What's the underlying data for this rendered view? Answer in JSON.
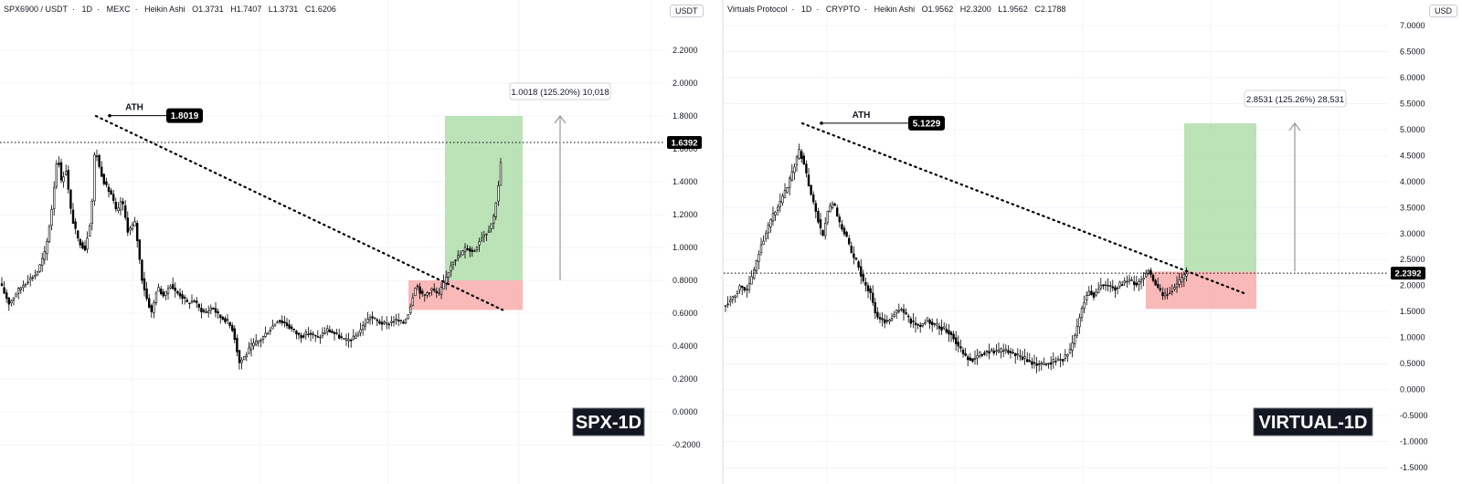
{
  "panels": [
    {
      "id": "spx",
      "header": {
        "symbol": "SPX6900 / USDT",
        "interval": "1D",
        "exchange": "MEXC",
        "style": "Heikin Ashi",
        "open": "O1.3731",
        "high": "H1.7407",
        "low": "L1.3731",
        "close": "C1.6206"
      },
      "currency": "USDT",
      "watermark": "SPX-1D",
      "ath_label": "ATH",
      "ath_value": "1.8019",
      "price_tag": "1.6392",
      "measure_label": "1.0018 (125.20%) 10,018"
    },
    {
      "id": "virtual",
      "header": {
        "symbol": "Virtuals Protocol",
        "interval": "1D",
        "exchange": "CRYPTO",
        "style": "Heikin Ashi",
        "open": "O1.9562",
        "high": "H2.3200",
        "low": "L1.9562",
        "close": "C2.1788"
      },
      "currency": "USD",
      "watermark": "VIRTUAL-1D",
      "ath_label": "ATH",
      "ath_value": "5.1229",
      "price_tag": "2.2392",
      "measure_label": "2.8531 (125.26%) 28,531"
    }
  ],
  "chart_data": [
    {
      "type": "candlestick",
      "title": "SPX6900 / USDT · 1D · MEXC · Heikin Ashi",
      "ylim": [
        -0.2,
        2.2
      ],
      "yticks": [
        "2.2000",
        "2.0000",
        "1.8000",
        "1.6000",
        "1.4000",
        "1.2000",
        "1.0000",
        "0.8000",
        "0.6000",
        "0.4000",
        "0.2000",
        "0.0000",
        "-0.2000"
      ],
      "price_path": [
        [
          0,
          0.78
        ],
        [
          10,
          0.66
        ],
        [
          20,
          0.74
        ],
        [
          30,
          0.8
        ],
        [
          40,
          0.84
        ],
        [
          50,
          0.98
        ],
        [
          57,
          1.25
        ],
        [
          63,
          1.58
        ],
        [
          67,
          1.4
        ],
        [
          72,
          1.48
        ],
        [
          78,
          1.2
        ],
        [
          85,
          1.05
        ],
        [
          93,
          0.99
        ],
        [
          100,
          1.2
        ],
        [
          104,
          1.62
        ],
        [
          108,
          1.5
        ],
        [
          115,
          1.38
        ],
        [
          122,
          1.32
        ],
        [
          128,
          1.2
        ],
        [
          133,
          1.3
        ],
        [
          140,
          1.1
        ],
        [
          148,
          1.15
        ],
        [
          155,
          0.82
        ],
        [
          160,
          0.7
        ],
        [
          166,
          0.6
        ],
        [
          172,
          0.76
        ],
        [
          180,
          0.7
        ],
        [
          186,
          0.78
        ],
        [
          192,
          0.73
        ],
        [
          198,
          0.71
        ],
        [
          205,
          0.66
        ],
        [
          212,
          0.68
        ],
        [
          218,
          0.63
        ],
        [
          225,
          0.6
        ],
        [
          232,
          0.64
        ],
        [
          240,
          0.58
        ],
        [
          247,
          0.56
        ],
        [
          255,
          0.5
        ],
        [
          262,
          0.3
        ],
        [
          268,
          0.34
        ],
        [
          275,
          0.4
        ],
        [
          285,
          0.44
        ],
        [
          295,
          0.5
        ],
        [
          304,
          0.56
        ],
        [
          312,
          0.54
        ],
        [
          320,
          0.5
        ],
        [
          328,
          0.46
        ],
        [
          338,
          0.48
        ],
        [
          348,
          0.45
        ],
        [
          358,
          0.5
        ],
        [
          368,
          0.47
        ],
        [
          378,
          0.43
        ],
        [
          388,
          0.45
        ],
        [
          397,
          0.52
        ],
        [
          405,
          0.58
        ],
        [
          413,
          0.55
        ],
        [
          422,
          0.53
        ],
        [
          432,
          0.56
        ],
        [
          442,
          0.54
        ],
        [
          448,
          0.62
        ],
        [
          455,
          0.78
        ],
        [
          463,
          0.7
        ],
        [
          472,
          0.75
        ],
        [
          480,
          0.71
        ],
        [
          487,
          0.8
        ],
        [
          495,
          0.92
        ],
        [
          503,
          0.95
        ],
        [
          510,
          1.0
        ],
        [
          518,
          0.97
        ],
        [
          526,
          1.06
        ],
        [
          534,
          1.1
        ],
        [
          540,
          1.18
        ],
        [
          546,
          1.4
        ],
        [
          550,
          1.62
        ]
      ],
      "ath": {
        "x": 105,
        "y": 1.8019
      },
      "trendline": [
        [
          105,
          1.8
        ],
        [
          550,
          0.62
        ]
      ],
      "current_price": 1.6392,
      "long_position": {
        "entry": 0.8,
        "target": 1.8,
        "stop": 0.62,
        "x_start": 447,
        "entry_x": 487,
        "x_end": 572
      }
    },
    {
      "type": "candlestick",
      "title": "Virtuals Protocol · 1D · CRYPTO · Heikin Ashi",
      "ylim": [
        -1.5,
        7.0
      ],
      "yticks": [
        "7.0000",
        "6.5000",
        "6.0000",
        "5.5000",
        "5.0000",
        "4.5000",
        "4.0000",
        "3.5000",
        "3.0000",
        "2.5000",
        "2.0000",
        "1.5000",
        "1.0000",
        "0.5000",
        "0.0000",
        "-0.5000",
        "-1.0000",
        "-1.5000"
      ],
      "price_path": [
        [
          0,
          1.6
        ],
        [
          10,
          1.78
        ],
        [
          18,
          2.0
        ],
        [
          25,
          1.9
        ],
        [
          32,
          2.2
        ],
        [
          40,
          2.75
        ],
        [
          47,
          3.05
        ],
        [
          55,
          3.4
        ],
        [
          62,
          3.6
        ],
        [
          70,
          3.9
        ],
        [
          77,
          4.3
        ],
        [
          83,
          4.6
        ],
        [
          87,
          4.4
        ],
        [
          92,
          4.0
        ],
        [
          97,
          3.65
        ],
        [
          103,
          3.3
        ],
        [
          108,
          2.9
        ],
        [
          113,
          3.4
        ],
        [
          120,
          3.6
        ],
        [
          126,
          3.2
        ],
        [
          133,
          3.0
        ],
        [
          140,
          2.6
        ],
        [
          147,
          2.4
        ],
        [
          153,
          2.05
        ],
        [
          160,
          1.9
        ],
        [
          167,
          1.4
        ],
        [
          173,
          1.35
        ],
        [
          180,
          1.3
        ],
        [
          187,
          1.48
        ],
        [
          194,
          1.55
        ],
        [
          201,
          1.38
        ],
        [
          208,
          1.27
        ],
        [
          215,
          1.22
        ],
        [
          222,
          1.35
        ],
        [
          229,
          1.25
        ],
        [
          236,
          1.2
        ],
        [
          243,
          1.15
        ],
        [
          250,
          1.05
        ],
        [
          257,
          0.82
        ],
        [
          265,
          0.62
        ],
        [
          273,
          0.58
        ],
        [
          282,
          0.7
        ],
        [
          291,
          0.75
        ],
        [
          300,
          0.72
        ],
        [
          308,
          0.76
        ],
        [
          316,
          0.7
        ],
        [
          324,
          0.63
        ],
        [
          332,
          0.56
        ],
        [
          340,
          0.5
        ],
        [
          348,
          0.48
        ],
        [
          356,
          0.52
        ],
        [
          364,
          0.56
        ],
        [
          372,
          0.6
        ],
        [
          380,
          0.78
        ],
        [
          387,
          1.22
        ],
        [
          394,
          1.7
        ],
        [
          400,
          1.9
        ],
        [
          406,
          1.8
        ],
        [
          412,
          2.02
        ],
        [
          420,
          2.0
        ],
        [
          428,
          1.95
        ],
        [
          436,
          2.05
        ],
        [
          444,
          2.1
        ],
        [
          452,
          2.02
        ],
        [
          460,
          2.18
        ],
        [
          465,
          2.3
        ],
        [
          470,
          2.1
        ],
        [
          475,
          1.95
        ],
        [
          480,
          1.8
        ],
        [
          486,
          1.85
        ],
        [
          492,
          1.95
        ],
        [
          500,
          2.1
        ],
        [
          507,
          2.25
        ]
      ],
      "ath": {
        "x": 86,
        "y": 5.1229
      },
      "trendline": [
        [
          86,
          5.12
        ],
        [
          570,
          1.85
        ]
      ],
      "current_price": 2.2392,
      "long_position": {
        "entry": 2.27,
        "target": 5.12,
        "stop": 1.55,
        "x_start": 462,
        "entry_x": 504,
        "x_end": 583
      }
    }
  ]
}
